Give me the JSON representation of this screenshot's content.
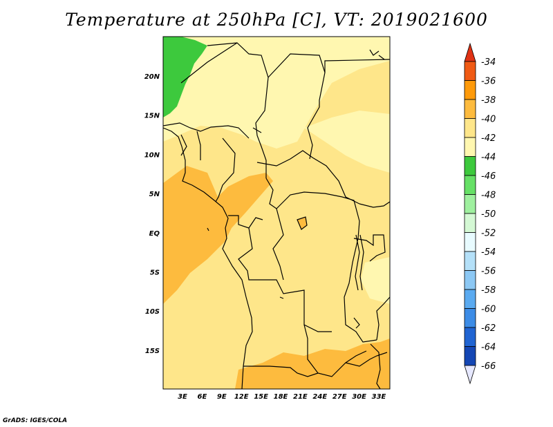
{
  "title": "Temperature at 250hPa [C], VT: 2019021600",
  "credit": "GrADS: IGES/COLA",
  "map": {
    "lat_ticks": [
      "20N",
      "15N",
      "10N",
      "5N",
      "EQ",
      "5S",
      "10S",
      "15S"
    ],
    "lon_ticks": [
      "3E",
      "6E",
      "9E",
      "12E",
      "15E",
      "18E",
      "21E",
      "24E",
      "27E",
      "30E",
      "33E"
    ],
    "fill_colors": {
      "minus44_minus46": "#3dc93d",
      "minus42_minus44": "#fff7b0",
      "minus40_minus42": "#fee68a",
      "minus38_minus40": "#fdbb3e",
      "minus36_minus38": "#ffa01e"
    }
  },
  "colorbar": {
    "labels": [
      "-34",
      "-36",
      "-38",
      "-40",
      "-42",
      "-44",
      "-46",
      "-48",
      "-50",
      "-52",
      "-54",
      "-56",
      "-58",
      "-60",
      "-62",
      "-64",
      "-66"
    ],
    "colors": [
      "#f05a14",
      "#fe9a0a",
      "#fdbb3e",
      "#fee68a",
      "#fff7b0",
      "#3dc93d",
      "#66e066",
      "#9ff09f",
      "#d4f8d4",
      "#e8fbff",
      "#b4e0f8",
      "#8cc8f4",
      "#5aaaf0",
      "#3c8ce6",
      "#2064d2",
      "#1446b4",
      "#0a1e78"
    ],
    "over_color": "#e03214",
    "under_color": "#e6e8ff"
  }
}
